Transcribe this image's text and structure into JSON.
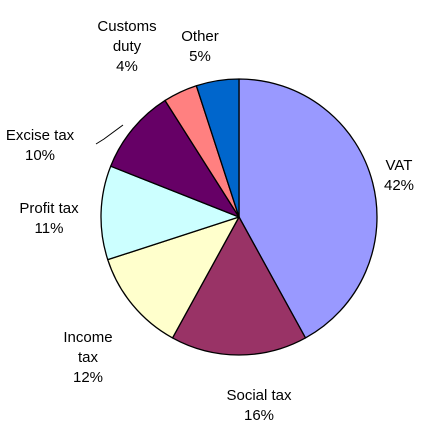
{
  "chart_data": {
    "type": "pie",
    "title": "",
    "slices": [
      {
        "label_lines": [
          "VAT"
        ],
        "pct_label": "42%",
        "value": 42,
        "color": "#9999ff"
      },
      {
        "label_lines": [
          "Social tax"
        ],
        "pct_label": "16%",
        "value": 16,
        "color": "#993366"
      },
      {
        "label_lines": [
          "Income",
          "tax"
        ],
        "pct_label": "12%",
        "value": 12,
        "color": "#ffffcc"
      },
      {
        "label_lines": [
          "Profit tax"
        ],
        "pct_label": "11%",
        "value": 11,
        "color": "#ccffff"
      },
      {
        "label_lines": [
          "Excise tax"
        ],
        "pct_label": "10%",
        "value": 10,
        "color": "#660066"
      },
      {
        "label_lines": [
          "Customs",
          "duty"
        ],
        "pct_label": "4%",
        "value": 4,
        "color": "#ff8080"
      },
      {
        "label_lines": [
          "Other"
        ],
        "pct_label": "5%",
        "value": 5,
        "color": "#0066cc"
      }
    ],
    "start": "top",
    "direction": "clockwise",
    "legend": "none",
    "outline_color": "#000000"
  }
}
